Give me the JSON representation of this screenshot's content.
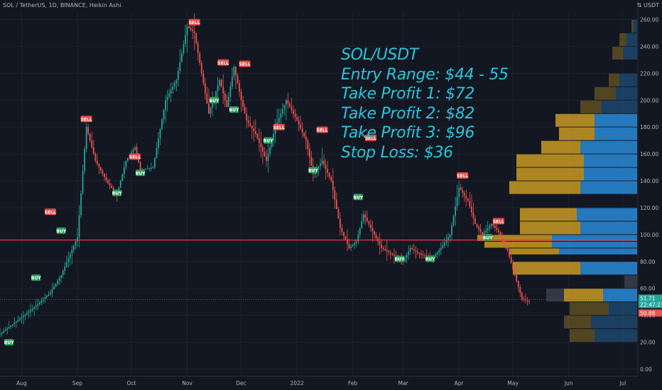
{
  "header": {
    "symbol_line": "SOL / TetherUS, 1D, BINANCE, Heikin Ashi",
    "currency_icon": "currency-icon",
    "currency": "USDT"
  },
  "annotation": {
    "lines": [
      "SOL/USDT",
      "Entry Range: $44 - 55",
      "Take Profit 1: $72",
      "Take Profit 2: $82",
      "Take Profit 3: $96",
      "Stop Loss: $36"
    ]
  },
  "price_tags": {
    "last_price": "51.71",
    "countdown": "22:47:23",
    "low_marker": "50.88"
  },
  "colors": {
    "background": "#131722",
    "up": "#26a69a",
    "down": "#ef5350",
    "annotation": "#26c6da",
    "level_line": "#f23645",
    "vp_buy": "#2a8ad8",
    "vp_sell": "#c99a23"
  },
  "chart_data": {
    "type": "candlestick",
    "style": "Heikin Ashi",
    "interval": "1D",
    "exchange": "BINANCE",
    "ylim": [
      -5,
      265
    ],
    "y_ticks": [
      "0.00",
      "20.00",
      "40.00",
      "60.00",
      "80.00",
      "100.00",
      "120.00",
      "140.00",
      "160.00",
      "180.00",
      "200.00",
      "220.00",
      "240.00",
      "260.00"
    ],
    "y_tick_values": [
      0,
      20,
      40,
      60,
      80,
      100,
      120,
      140,
      160,
      180,
      200,
      220,
      240,
      260
    ],
    "x_ticks": [
      {
        "label": "Aug",
        "day": 0
      },
      {
        "label": "Sep",
        "day": 31
      },
      {
        "label": "Oct",
        "day": 61
      },
      {
        "label": "Nov",
        "day": 92
      },
      {
        "label": "Dec",
        "day": 122
      },
      {
        "label": "2022",
        "day": 153
      },
      {
        "label": "Feb",
        "day": 184
      },
      {
        "label": "Mar",
        "day": 212
      },
      {
        "label": "Apr",
        "day": 243
      },
      {
        "label": "May",
        "day": 273
      },
      {
        "label": "Jun",
        "day": 304
      },
      {
        "label": "Jul",
        "day": 334
      }
    ],
    "x_range_days": [
      -12,
      342
    ],
    "price_path_days": [
      -12,
      8,
      16,
      22,
      31,
      36,
      41,
      48,
      53,
      58,
      63,
      66,
      73,
      80,
      86,
      92,
      96,
      100,
      104,
      110,
      114,
      118,
      122,
      125,
      130,
      136,
      141,
      147,
      153,
      158,
      162,
      167,
      172,
      177,
      182,
      186,
      190,
      196,
      200,
      206,
      212,
      216,
      222,
      228,
      233,
      238,
      243,
      248,
      252,
      256,
      261,
      265,
      270,
      274,
      278,
      282
    ],
    "price_path_values": [
      26,
      47,
      57,
      70,
      98,
      180,
      155,
      138,
      130,
      155,
      165,
      148,
      150,
      200,
      215,
      255,
      250,
      220,
      190,
      215,
      195,
      225,
      200,
      185,
      175,
      155,
      180,
      200,
      185,
      170,
      145,
      155,
      140,
      105,
      90,
      95,
      115,
      100,
      90,
      85,
      80,
      90,
      85,
      82,
      90,
      100,
      135,
      125,
      108,
      100,
      108,
      102,
      88,
      70,
      52,
      50
    ],
    "reference_level": 96,
    "current_price": 51.71,
    "signals": [
      {
        "type": "SELL",
        "label": "SELL",
        "day": 36
      },
      {
        "type": "BUY",
        "label": "BUY",
        "day": 8
      },
      {
        "type": "SELL",
        "label": "SELL",
        "day": 16
      },
      {
        "type": "BUY",
        "label": "BUY",
        "day": 22
      },
      {
        "type": "BUY",
        "label": "BUY",
        "day": 53
      },
      {
        "type": "SELL",
        "label": "SELL",
        "day": 63
      },
      {
        "type": "BUY",
        "label": "BUY",
        "day": 66
      },
      {
        "type": "SELL",
        "label": "SELL",
        "day": 96
      },
      {
        "type": "SELL",
        "label": "SELL",
        "day": 112
      },
      {
        "type": "BUY",
        "label": "BUY",
        "day": 107
      },
      {
        "type": "SELL",
        "label": "SELL",
        "day": 124
      },
      {
        "type": "BUY",
        "label": "BUY",
        "day": 118
      },
      {
        "type": "SELL",
        "label": "SELL",
        "day": 143
      },
      {
        "type": "BUY",
        "label": "BUY",
        "day": 137
      },
      {
        "type": "SELL",
        "label": "SELL",
        "day": 167
      },
      {
        "type": "BUY",
        "label": "BUY",
        "day": 162
      },
      {
        "type": "SELL",
        "label": "SELL",
        "day": 194
      },
      {
        "type": "BUY",
        "label": "BUY",
        "day": 187
      },
      {
        "type": "BUY",
        "label": "BUY",
        "day": 210
      },
      {
        "type": "BUY",
        "label": "BUY",
        "day": 227
      },
      {
        "type": "SELL",
        "label": "SELL",
        "day": 245
      },
      {
        "type": "SELL",
        "label": "SELL",
        "day": 265
      },
      {
        "type": "BUY",
        "label": "BUY",
        "day": 259
      },
      {
        "type": "BUY",
        "label": "BUY",
        "day": -7
      }
    ],
    "signal_prices": [
      186,
      68,
      117,
      103,
      131,
      158,
      146,
      258,
      228,
      200,
      227,
      193,
      180,
      170,
      178,
      148,
      172,
      128,
      82,
      82,
      144,
      110,
      98,
      20
    ],
    "volume_profile": {
      "bins_low": [
        20,
        30,
        40,
        50,
        60,
        70,
        80,
        85,
        90,
        95,
        100,
        110,
        120,
        130,
        140,
        150,
        160,
        170,
        180,
        190,
        200,
        210,
        220,
        230,
        240,
        250
      ],
      "bins_high": [
        30,
        40,
        50,
        60,
        70,
        80,
        85,
        90,
        95,
        100,
        110,
        120,
        130,
        140,
        150,
        160,
        170,
        180,
        190,
        200,
        210,
        220,
        230,
        240,
        250,
        260
      ],
      "buy_volume": [
        60,
        65,
        40,
        48,
        0,
        80,
        0,
        110,
        120,
        120,
        80,
        85,
        0,
        80,
        75,
        75,
        80,
        60,
        60,
        50,
        30,
        25,
        0,
        20,
        15,
        5
      ],
      "sell_volume": [
        35,
        38,
        55,
        55,
        0,
        95,
        0,
        70,
        95,
        105,
        85,
        80,
        0,
        100,
        95,
        95,
        55,
        50,
        55,
        30,
        30,
        15,
        0,
        15,
        10,
        3
      ],
      "neutral_volume": [
        0,
        0,
        0,
        25,
        18,
        0,
        0,
        0,
        0,
        0,
        0,
        0,
        0,
        0,
        0,
        0,
        0,
        0,
        0,
        0,
        0,
        0,
        0,
        0,
        0,
        0
      ]
    }
  }
}
